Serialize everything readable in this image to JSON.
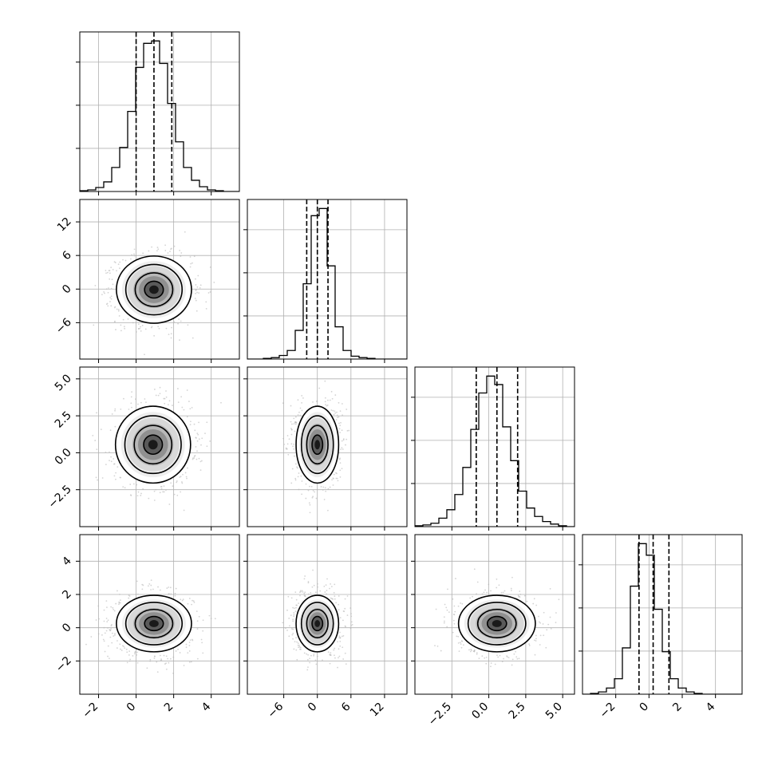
{
  "chart_data": {
    "type": "corner",
    "n_params": 4,
    "grid": true,
    "colors": {
      "line": "#000000",
      "points": "#b8b8b8",
      "grid": "#b0b0b0",
      "hist_dark": "#000000",
      "hist_light": "#ffffff"
    },
    "params": [
      {
        "range": [
          -3.0,
          5.5
        ],
        "ticks": [
          -2,
          0,
          2,
          4
        ],
        "tick_labels": [
          "−2",
          "0",
          "2",
          "4"
        ],
        "quantiles": [
          0.0,
          0.95,
          1.9
        ],
        "hist": {
          "edges_start": -3.0,
          "bin_width": 0.425,
          "counts": [
            1,
            2,
            5,
            12,
            30,
            55,
            100,
            155,
            185,
            188,
            160,
            110,
            62,
            30,
            14,
            6,
            2,
            1,
            0,
            0
          ]
        }
      },
      {
        "range": [
          -12.5,
          16.0
        ],
        "ticks": [
          -6,
          0,
          6,
          12
        ],
        "tick_labels": [
          "−6",
          "0",
          "6",
          "12"
        ],
        "quantiles": [
          -1.9,
          0.0,
          1.9
        ],
        "hist": {
          "edges_start": -12.5,
          "bin_width": 1.425,
          "counts": [
            0,
            0,
            1,
            2,
            5,
            12,
            40,
            105,
            200,
            210,
            130,
            45,
            12,
            4,
            2,
            1,
            0,
            0,
            0,
            0
          ]
        }
      },
      {
        "range": [
          -5.0,
          5.8
        ],
        "ticks": [
          -2.5,
          0.0,
          2.5,
          5.0
        ],
        "tick_labels": [
          "−2.5",
          "0.0",
          "2.5",
          "5.0"
        ],
        "quantiles": [
          -0.85,
          0.55,
          1.95
        ],
        "hist": {
          "edges_start": -5.0,
          "bin_width": 0.54,
          "counts": [
            1,
            2,
            4,
            10,
            20,
            38,
            70,
            115,
            158,
            178,
            168,
            118,
            78,
            42,
            22,
            12,
            6,
            3,
            1,
            0
          ]
        }
      },
      {
        "range": [
          -4.0,
          5.6
        ],
        "ticks": [
          -2,
          0,
          2,
          4
        ],
        "tick_labels": [
          "−2",
          "0",
          "2",
          "4"
        ],
        "quantiles": [
          -0.6,
          0.25,
          1.2
        ],
        "hist": {
          "edges_start": -4.0,
          "bin_width": 0.48,
          "counts": [
            0,
            1,
            3,
            8,
            20,
            60,
            140,
            195,
            180,
            110,
            55,
            20,
            8,
            3,
            1,
            0,
            0,
            0,
            0,
            0
          ]
        }
      }
    ],
    "pairs": [
      {
        "i": 1,
        "j": 0,
        "center": [
          0.95,
          -0.1
        ],
        "sigma": [
          1.0,
          3.0
        ]
      },
      {
        "i": 2,
        "j": 0,
        "center": [
          0.9,
          0.55
        ],
        "sigma": [
          1.0,
          1.3
        ]
      },
      {
        "i": 3,
        "j": 0,
        "center": [
          0.95,
          0.25
        ],
        "sigma": [
          1.0,
          0.85
        ]
      },
      {
        "i": 2,
        "j": 1,
        "center": [
          0.0,
          0.55
        ],
        "sigma": [
          1.9,
          1.3
        ]
      },
      {
        "i": 3,
        "j": 1,
        "center": [
          0.0,
          0.25
        ],
        "sigma": [
          1.9,
          0.85
        ]
      },
      {
        "i": 3,
        "j": 2,
        "center": [
          0.55,
          0.25
        ],
        "sigma": [
          1.3,
          0.85
        ]
      }
    ],
    "contour_levels_sigma": [
      0.5,
      1.0,
      1.5,
      2.0
    ]
  }
}
